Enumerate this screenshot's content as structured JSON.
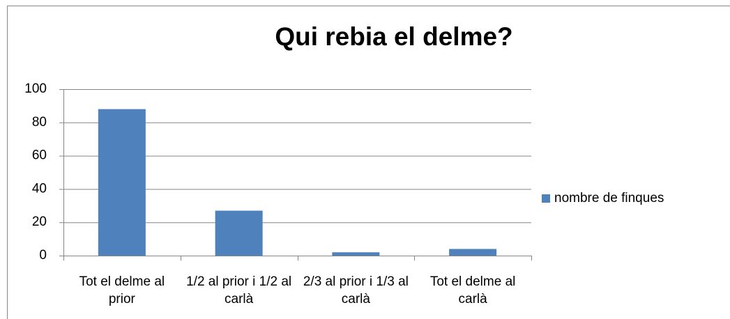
{
  "chart_data": {
    "type": "bar",
    "title": "Qui rebia el delme?",
    "categories": [
      "Tot el delme al prior",
      "1/2 al prior i 1/2 al carlà",
      "2/3 al prior i 1/3 al carlà",
      "Tot el delme al carlà"
    ],
    "series": [
      {
        "name": "nombre de finques",
        "color": "#4f81bd",
        "values": [
          88,
          27,
          2,
          4
        ]
      }
    ],
    "ylim": [
      0,
      100
    ],
    "yticks": [
      0,
      20,
      40,
      60,
      80,
      100
    ],
    "grid": true,
    "legend": "right"
  }
}
